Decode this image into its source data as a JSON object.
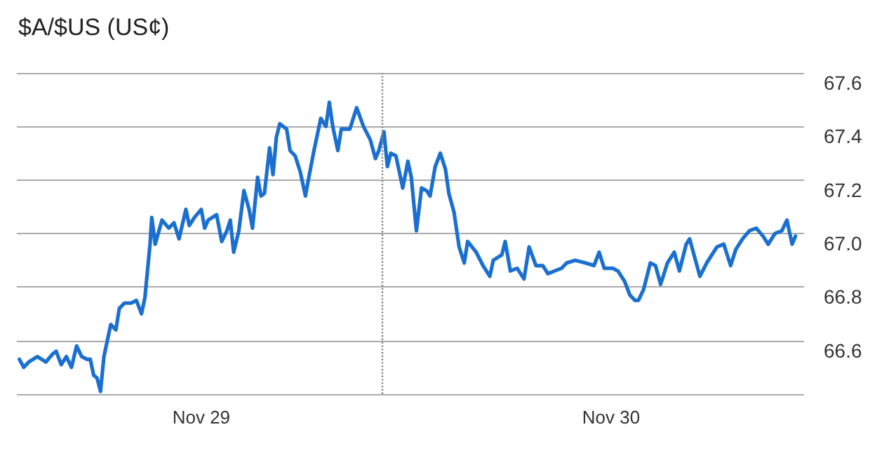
{
  "chart_data": {
    "type": "line",
    "title": "$A/$US (US¢)",
    "x": [
      "--11-28T13:21",
      "--11-28T13:36",
      "--11-28T13:54",
      "--11-28T14:24",
      "--11-28T14:54",
      "--11-28T15:18",
      "--11-28T15:30",
      "--11-28T15:48",
      "--11-28T16:06",
      "--11-28T16:24",
      "--11-28T16:42",
      "--11-28T17:00",
      "--11-28T17:18",
      "--11-28T17:30",
      "--11-28T17:42",
      "--11-28T17:54",
      "--11-28T18:06",
      "--11-28T18:18",
      "--11-28T18:42",
      "--11-28T19:00",
      "--11-28T19:12",
      "--11-28T19:30",
      "--11-28T19:54",
      "--11-28T20:12",
      "--11-28T20:30",
      "--11-28T20:42",
      "--11-28T21:00",
      "--11-28T21:06",
      "--11-28T21:18",
      "--11-28T21:42",
      "--11-28T22:06",
      "--11-28T22:24",
      "--11-28T22:42",
      "--11-28T23:06",
      "--11-28T23:18",
      "--11-28T23:36",
      "--11-29T00:00",
      "--11-29T00:12",
      "--11-29T00:24",
      "--11-29T00:54",
      "--11-29T01:12",
      "--11-29T01:30",
      "--11-29T01:42",
      "--11-29T01:54",
      "--11-29T02:12",
      "--11-29T02:30",
      "--11-29T02:48",
      "--11-29T03:00",
      "--11-29T03:18",
      "--11-29T03:30",
      "--11-29T03:42",
      "--11-29T04:00",
      "--11-29T04:12",
      "--11-29T04:24",
      "--11-29T04:36",
      "--11-29T05:00",
      "--11-29T05:12",
      "--11-29T05:30",
      "--11-29T05:48",
      "--11-29T06:06",
      "--11-29T06:18",
      "--11-29T06:36",
      "--11-29T07:00",
      "--11-29T07:18",
      "--11-29T07:30",
      "--11-29T07:42",
      "--11-29T08:00",
      "--11-29T08:12",
      "--11-29T08:42",
      "--11-29T09:06",
      "--11-29T09:30",
      "--11-29T09:54",
      "--11-29T10:12",
      "--11-29T10:24",
      "--11-29T10:42",
      "--11-29T10:54",
      "--11-29T11:06",
      "--11-29T11:24",
      "--11-29T11:48",
      "--11-29T12:06",
      "--11-29T12:18",
      "--11-29T12:36",
      "--11-29T12:54",
      "--11-29T13:12",
      "--11-29T13:24",
      "--11-29T13:42",
      "--11-29T14:00",
      "--11-29T14:18",
      "--11-29T14:30",
      "--11-29T14:48",
      "--11-29T15:06",
      "--11-29T15:24",
      "--11-29T15:36",
      "--11-29T16:06",
      "--11-29T16:30",
      "--11-29T16:54",
      "--11-29T17:06",
      "--11-29T17:36",
      "--11-29T17:48",
      "--11-29T18:06",
      "--11-29T18:30",
      "--11-29T18:54",
      "--11-29T19:12",
      "--11-29T19:36",
      "--11-29T20:00",
      "--11-29T20:18",
      "--11-29T20:42",
      "--11-29T21:06",
      "--11-29T21:24",
      "--11-29T21:54",
      "--11-29T22:30",
      "--11-29T23:00",
      "--11-29T23:18",
      "--11-29T23:36",
      "--11-30T00:06",
      "--11-30T00:24",
      "--11-30T00:48",
      "--11-30T01:06",
      "--11-30T01:24",
      "--11-30T01:36",
      "--11-30T01:54",
      "--11-30T02:18",
      "--11-30T02:36",
      "--11-30T02:54",
      "--11-30T03:18",
      "--11-30T03:42",
      "--11-30T04:00",
      "--11-30T04:24",
      "--11-30T04:36",
      "--11-30T04:54",
      "--11-30T05:12",
      "--11-30T05:36",
      "--11-30T06:12",
      "--11-30T06:36",
      "--11-30T07:00",
      "--11-30T07:18",
      "--11-30T07:42",
      "--11-30T08:06",
      "--11-30T08:30",
      "--11-30T08:54",
      "--11-30T09:12",
      "--11-30T09:36",
      "--11-30T10:00",
      "--11-30T10:18",
      "--11-30T10:36",
      "--11-30T10:48"
    ],
    "series": [
      {
        "color": "#1a6fd0",
        "values": [
          66.53,
          66.5,
          66.52,
          66.54,
          66.52,
          66.55,
          66.56,
          66.51,
          66.54,
          66.5,
          66.58,
          66.54,
          66.53,
          66.53,
          66.47,
          66.46,
          66.41,
          66.54,
          66.66,
          66.64,
          66.72,
          66.74,
          66.74,
          66.75,
          66.7,
          66.76,
          66.96,
          67.06,
          66.96,
          67.05,
          67.02,
          67.04,
          66.98,
          67.09,
          67.03,
          67.06,
          67.09,
          67.02,
          67.05,
          67.07,
          66.97,
          67.01,
          67.05,
          66.93,
          67.01,
          67.16,
          67.09,
          67.02,
          67.21,
          67.14,
          67.15,
          67.32,
          67.22,
          67.36,
          67.41,
          67.39,
          67.31,
          67.29,
          67.23,
          67.14,
          67.21,
          67.31,
          67.43,
          67.4,
          67.49,
          67.4,
          67.31,
          67.39,
          67.39,
          67.47,
          67.4,
          67.35,
          67.28,
          67.31,
          67.38,
          67.25,
          67.3,
          67.29,
          67.17,
          67.27,
          67.21,
          67.01,
          67.17,
          67.16,
          67.14,
          67.25,
          67.3,
          67.24,
          67.15,
          67.08,
          66.95,
          66.89,
          66.97,
          66.93,
          66.88,
          66.84,
          66.9,
          66.92,
          66.97,
          66.86,
          66.87,
          66.83,
          66.95,
          66.88,
          66.88,
          66.85,
          66.86,
          66.87,
          66.89,
          66.9,
          66.89,
          66.88,
          66.93,
          66.87,
          66.87,
          66.86,
          66.82,
          66.77,
          66.75,
          66.75,
          66.79,
          66.89,
          66.88,
          66.81,
          66.89,
          66.93,
          66.86,
          66.96,
          66.98,
          66.91,
          66.84,
          66.89,
          66.95,
          66.96,
          66.88,
          66.94,
          66.98,
          67.01,
          67.02,
          66.99,
          66.96,
          67.0,
          67.01,
          67.05,
          66.96,
          66.99
        ]
      }
    ],
    "xlim": [
      "--11-28T13:12",
      "--11-30T11:18"
    ],
    "xticks": [
      {
        "value": "--11-29",
        "label": "Nov 29"
      },
      {
        "value": "--11-30",
        "label": "Nov 30"
      }
    ],
    "ylim": [
      66.4,
      67.6
    ],
    "yticks": [
      {
        "value": 66.4,
        "label": null
      },
      66.6,
      66.8,
      {
        "value": 67,
        "label": "67.0"
      },
      67.2,
      67.4,
      67.6
    ],
    "grid": "y",
    "marker": "none",
    "line_style": "solid",
    "ref_lines": [
      {
        "axis": "x",
        "value": "--11-29T10:36",
        "color": "#888888",
        "line_style": "dotted"
      }
    ]
  }
}
